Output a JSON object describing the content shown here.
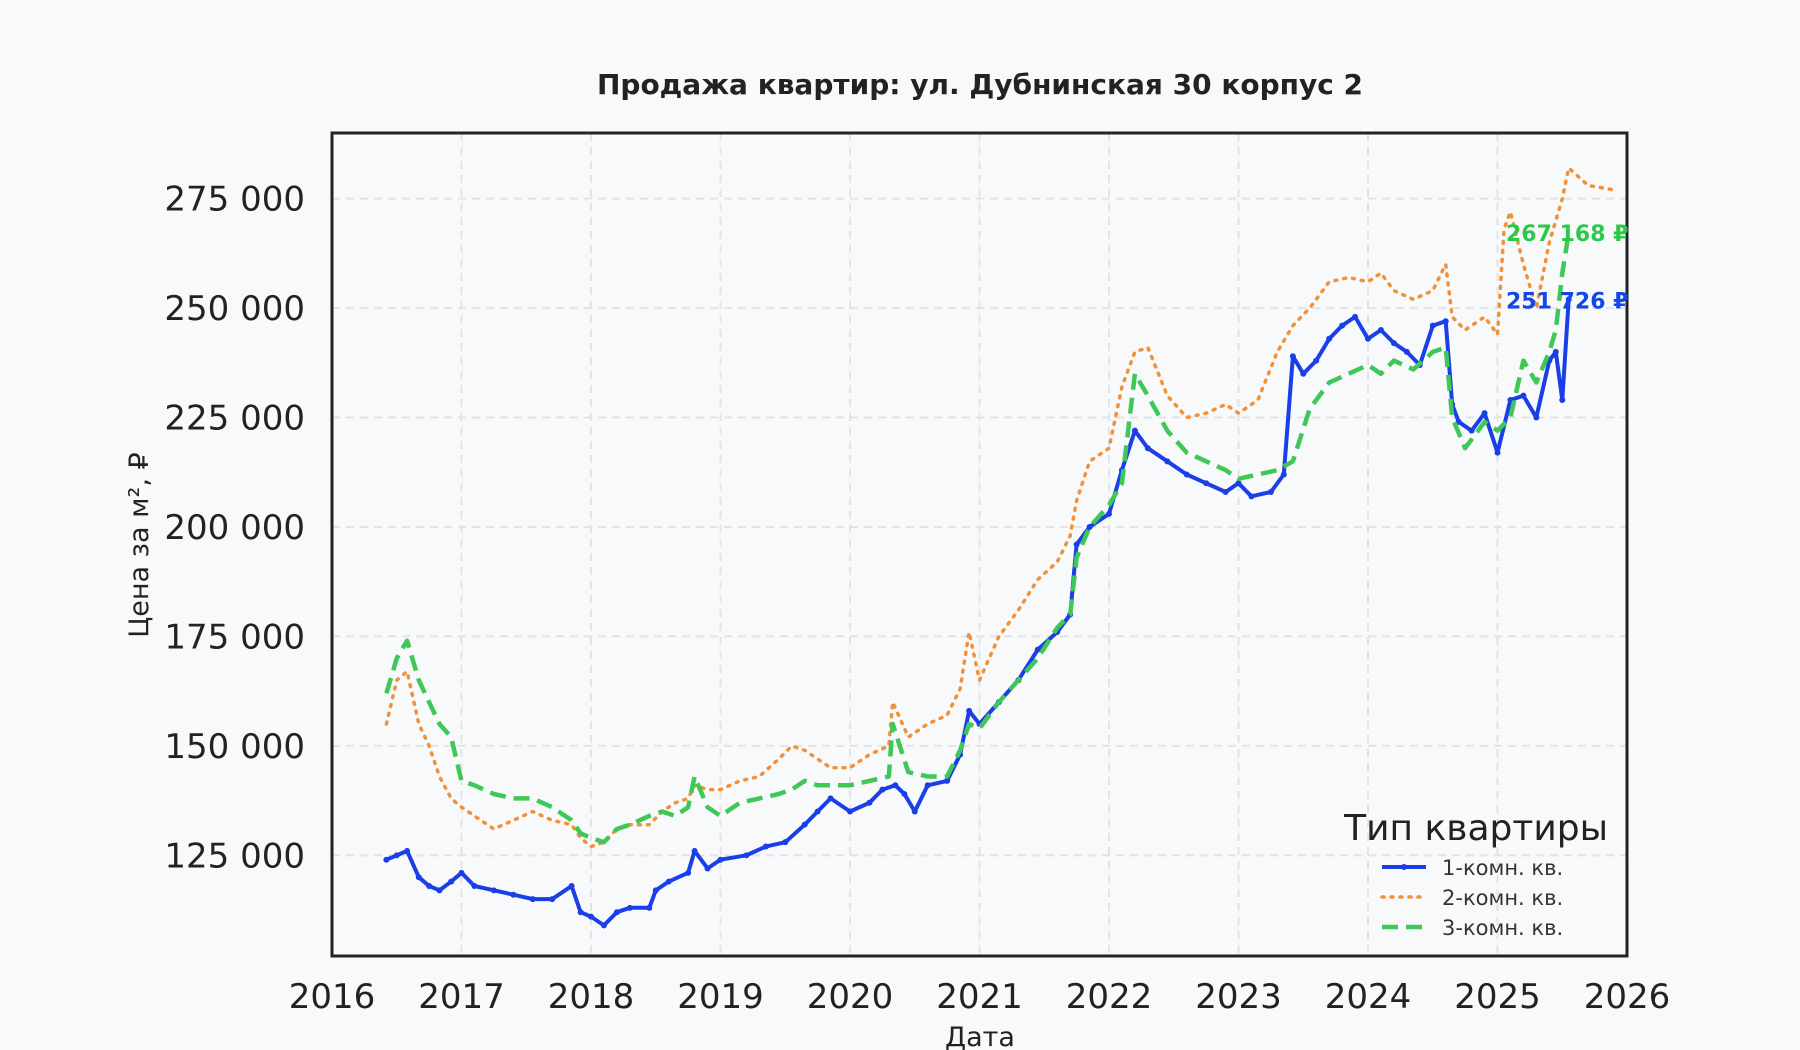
{
  "chart_data": {
    "type": "line",
    "title": "Продажа квартир: ул. Дубнинская 30 корпус 2",
    "xlabel": "Дата",
    "ylabel": "Цена за м², ₽",
    "xlim": [
      2016,
      2026
    ],
    "ylim": [
      102000,
      290000
    ],
    "x_ticks": [
      2016,
      2017,
      2018,
      2019,
      2020,
      2021,
      2022,
      2023,
      2024,
      2025,
      2026
    ],
    "y_ticks": [
      125000,
      150000,
      175000,
      200000,
      225000,
      250000,
      275000
    ],
    "y_tick_labels": [
      "125 000",
      "150 000",
      "175 000",
      "200 000",
      "225 000",
      "250 000",
      "275 000"
    ],
    "grid": true,
    "legend": {
      "title": "Тип квартиры",
      "placement": "bottom-right"
    },
    "series": [
      {
        "name": "1-комн. кв.",
        "color": "#1a3fe6",
        "style": "solid-markers",
        "x": [
          2016.42,
          2016.5,
          2016.58,
          2016.67,
          2016.75,
          2016.83,
          2016.92,
          2017.0,
          2017.1,
          2017.25,
          2017.4,
          2017.55,
          2017.7,
          2017.85,
          2017.92,
          2018.0,
          2018.1,
          2018.2,
          2018.3,
          2018.45,
          2018.5,
          2018.6,
          2018.75,
          2018.8,
          2018.9,
          2019.0,
          2019.2,
          2019.35,
          2019.5,
          2019.65,
          2019.75,
          2019.85,
          2020.0,
          2020.15,
          2020.25,
          2020.35,
          2020.42,
          2020.5,
          2020.6,
          2020.75,
          2020.85,
          2020.92,
          2021.0,
          2021.15,
          2021.3,
          2021.45,
          2021.6,
          2021.7,
          2021.75,
          2021.85,
          2022.0,
          2022.1,
          2022.2,
          2022.3,
          2022.45,
          2022.6,
          2022.75,
          2022.9,
          2023.0,
          2023.1,
          2023.25,
          2023.35,
          2023.42,
          2023.5,
          2023.6,
          2023.7,
          2023.8,
          2023.9,
          2024.0,
          2024.1,
          2024.2,
          2024.3,
          2024.4,
          2024.5,
          2024.6,
          2024.65,
          2024.7,
          2024.8,
          2024.9,
          2025.0,
          2025.1,
          2025.2,
          2025.3,
          2025.4,
          2025.45,
          2025.5,
          2025.55
        ],
        "y": [
          124000,
          125000,
          126000,
          120000,
          118000,
          117000,
          119000,
          121000,
          118000,
          117000,
          116000,
          115000,
          115000,
          118000,
          112000,
          111000,
          109000,
          112000,
          113000,
          113000,
          117000,
          119000,
          121000,
          126000,
          122000,
          124000,
          125000,
          127000,
          128000,
          132000,
          135000,
          138000,
          135000,
          137000,
          140000,
          141000,
          139000,
          135000,
          141000,
          142000,
          148000,
          158000,
          155000,
          160000,
          165000,
          172000,
          176000,
          180000,
          196000,
          200000,
          203000,
          213000,
          222000,
          218000,
          215000,
          212000,
          210000,
          208000,
          210000,
          207000,
          208000,
          212000,
          239000,
          235000,
          238000,
          243000,
          246000,
          248000,
          243000,
          245000,
          242000,
          240000,
          237000,
          246000,
          247000,
          228000,
          224000,
          222000,
          226000,
          217000,
          229000,
          230000,
          225000,
          238000,
          240000,
          229000,
          252000
        ]
      },
      {
        "name": "2-комн. кв.",
        "color": "#f0923a",
        "style": "dotted",
        "x": [
          2016.42,
          2016.5,
          2016.58,
          2016.67,
          2016.75,
          2016.83,
          2016.92,
          2017.0,
          2017.1,
          2017.25,
          2017.4,
          2017.55,
          2017.7,
          2017.85,
          2017.92,
          2018.0,
          2018.1,
          2018.2,
          2018.3,
          2018.45,
          2018.55,
          2018.65,
          2018.75,
          2018.8,
          2018.9,
          2019.0,
          2019.15,
          2019.3,
          2019.45,
          2019.55,
          2019.65,
          2019.75,
          2019.85,
          2020.0,
          2020.15,
          2020.3,
          2020.33,
          2020.45,
          2020.6,
          2020.75,
          2020.85,
          2020.92,
          2021.0,
          2021.15,
          2021.3,
          2021.45,
          2021.6,
          2021.7,
          2021.75,
          2021.85,
          2022.0,
          2022.1,
          2022.2,
          2022.3,
          2022.45,
          2022.6,
          2022.75,
          2022.9,
          2023.0,
          2023.15,
          2023.3,
          2023.42,
          2023.55,
          2023.7,
          2023.85,
          2024.0,
          2024.1,
          2024.2,
          2024.35,
          2024.5,
          2024.6,
          2024.65,
          2024.75,
          2024.9,
          2025.0,
          2025.05,
          2025.1,
          2025.2,
          2025.3,
          2025.4,
          2025.45,
          2025.5,
          2025.55,
          2025.7,
          2025.9
        ],
        "y": [
          155000,
          165000,
          167000,
          155000,
          150000,
          143000,
          138000,
          136000,
          134000,
          131000,
          133000,
          135000,
          133000,
          132000,
          129000,
          127000,
          128000,
          131000,
          132000,
          132000,
          135000,
          137000,
          138000,
          141000,
          140000,
          140000,
          142000,
          143000,
          147000,
          150000,
          149000,
          147000,
          145000,
          145000,
          148000,
          150000,
          160000,
          152000,
          155000,
          157000,
          163000,
          176000,
          165000,
          175000,
          181000,
          188000,
          192000,
          198000,
          206000,
          215000,
          218000,
          232000,
          240000,
          241000,
          230000,
          225000,
          226000,
          228000,
          226000,
          229000,
          240000,
          246000,
          250000,
          256000,
          257000,
          256000,
          258000,
          254000,
          252000,
          254000,
          260000,
          248000,
          245000,
          248000,
          244000,
          268000,
          272000,
          260000,
          250000,
          265000,
          270000,
          275000,
          282000,
          278000,
          277000
        ]
      },
      {
        "name": "3-комн. кв.",
        "color": "#3fc858",
        "style": "dashed",
        "x": [
          2016.42,
          2016.5,
          2016.58,
          2016.67,
          2016.75,
          2016.83,
          2016.92,
          2017.0,
          2017.1,
          2017.25,
          2017.4,
          2017.55,
          2017.7,
          2017.85,
          2017.92,
          2018.0,
          2018.1,
          2018.2,
          2018.3,
          2018.45,
          2018.55,
          2018.65,
          2018.75,
          2018.8,
          2018.9,
          2019.0,
          2019.15,
          2019.3,
          2019.45,
          2019.55,
          2019.65,
          2019.75,
          2019.85,
          2020.0,
          2020.15,
          2020.3,
          2020.33,
          2020.45,
          2020.6,
          2020.75,
          2020.85,
          2020.92,
          2021.0,
          2021.15,
          2021.3,
          2021.45,
          2021.6,
          2021.7,
          2021.75,
          2021.85,
          2022.0,
          2022.1,
          2022.2,
          2022.3,
          2022.45,
          2022.6,
          2022.75,
          2022.9,
          2023.0,
          2023.15,
          2023.3,
          2023.42,
          2023.55,
          2023.7,
          2023.85,
          2024.0,
          2024.1,
          2024.2,
          2024.35,
          2024.5,
          2024.6,
          2024.65,
          2024.75,
          2024.9,
          2025.0,
          2025.1,
          2025.2,
          2025.3,
          2025.4,
          2025.45,
          2025.5,
          2025.55
        ],
        "y": [
          162000,
          170000,
          174000,
          165000,
          160000,
          155000,
          152000,
          142000,
          141000,
          139000,
          138000,
          138000,
          136000,
          133000,
          130000,
          129000,
          128000,
          131000,
          132000,
          134000,
          135000,
          134000,
          136000,
          143000,
          136000,
          134000,
          137000,
          138000,
          139000,
          140000,
          142000,
          141000,
          141000,
          141000,
          142000,
          143000,
          155000,
          144000,
          143000,
          143000,
          149000,
          155000,
          154000,
          160000,
          165000,
          170000,
          177000,
          180000,
          193000,
          200000,
          205000,
          210000,
          235000,
          230000,
          222000,
          217000,
          215000,
          213000,
          211000,
          212000,
          213000,
          215000,
          227000,
          233000,
          235000,
          237000,
          235000,
          238000,
          236000,
          240000,
          241000,
          225000,
          218000,
          224000,
          222000,
          225000,
          238000,
          233000,
          240000,
          245000,
          258000,
          267168
        ]
      }
    ],
    "end_labels": [
      {
        "text": "267 168 ₽",
        "color": "#2cc84a",
        "value": 267168
      },
      {
        "text": "251 726 ₽",
        "color": "#1447e6",
        "value": 251726
      }
    ]
  }
}
